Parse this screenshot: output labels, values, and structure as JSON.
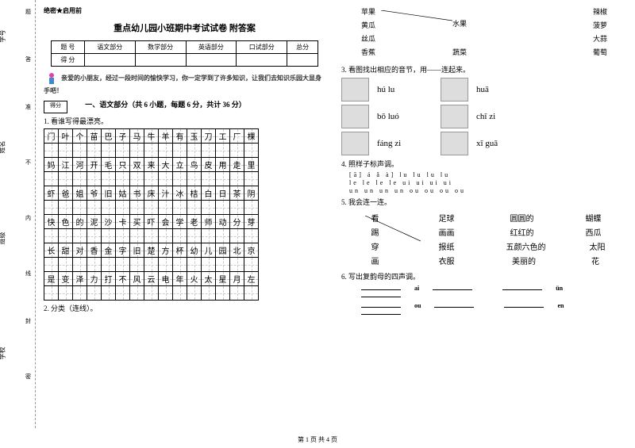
{
  "binding": {
    "labels": [
      "学号",
      "姓名",
      "班级",
      "学校"
    ],
    "marks": [
      "题",
      "答",
      "准",
      "不",
      "内",
      "线",
      "封",
      "密"
    ]
  },
  "header_tag": "绝密★启用前",
  "title": "重点幼儿园小班期中考试试卷 附答案",
  "score_table": {
    "headers": [
      "题 号",
      "语文部分",
      "数学部分",
      "英语部分",
      "口试部分",
      "总分"
    ],
    "row_label": "得 分"
  },
  "intro": "亲爱的小朋友，经过一段时间的愉快学习，你一定学到了许多知识，让我们去知识乐园大显身手吧！",
  "score_box_label": "得分",
  "section1_title": "一、语文部分（共 6 小题，每题 6 分，共计 36 分）",
  "q1": "1. 看谁写得最漂亮。",
  "char_grid": [
    [
      "门",
      "叶",
      "个",
      "苗",
      "巴",
      "子",
      "马",
      "牛",
      "羊",
      "有",
      "玉",
      "刀",
      "工",
      "厂",
      "棵"
    ],
    [
      "",
      "",
      "",
      "",
      "",
      "",
      "",
      "",
      "",
      "",
      "",
      "",
      "",
      "",
      ""
    ],
    [
      "妈",
      "江",
      "河",
      "开",
      "毛",
      "只",
      "双",
      "来",
      "大",
      "立",
      "鸟",
      "皮",
      "用",
      "走",
      "里"
    ],
    [
      "",
      "",
      "",
      "",
      "",
      "",
      "",
      "",
      "",
      "",
      "",
      "",
      "",
      "",
      ""
    ],
    [
      "虾",
      "爸",
      "姐",
      "爷",
      "旧",
      "姑",
      "书",
      "床",
      "汁",
      "冰",
      "桔",
      "白",
      "日",
      "茶",
      "阴"
    ],
    [
      "",
      "",
      "",
      "",
      "",
      "",
      "",
      "",
      "",
      "",
      "",
      "",
      "",
      "",
      ""
    ],
    [
      "快",
      "色",
      "的",
      "泥",
      "沙",
      "卡",
      "买",
      "吓",
      "会",
      "学",
      "老",
      "师",
      "动",
      "分",
      "芽"
    ],
    [
      "",
      "",
      "",
      "",
      "",
      "",
      "",
      "",
      "",
      "",
      "",
      "",
      "",
      "",
      ""
    ],
    [
      "长",
      "甜",
      "对",
      "香",
      "金",
      "字",
      "旧",
      "楚",
      "方",
      "杯",
      "幼",
      "儿",
      "园",
      "北",
      "京"
    ],
    [
      "",
      "",
      "",
      "",
      "",
      "",
      "",
      "",
      "",
      "",
      "",
      "",
      "",
      "",
      ""
    ],
    [
      "是",
      "变",
      "泽",
      "力",
      "打",
      "不",
      "风",
      "云",
      "电",
      "年",
      "火",
      "太",
      "星",
      "月",
      "左"
    ],
    [
      "",
      "",
      "",
      "",
      "",
      "",
      "",
      "",
      "",
      "",
      "",
      "",
      "",
      "",
      ""
    ]
  ],
  "q2": "2. 分类（连线）。",
  "match1": {
    "left": [
      "苹果",
      "黄瓜",
      "丝瓜",
      "香蕉"
    ],
    "mid": [
      "水果",
      "蔬菜"
    ],
    "right": [
      "辣椒",
      "菠萝",
      "大蒜",
      "葡萄"
    ]
  },
  "q3": "3. 看图找出相应的音节，用——连起来。",
  "pinyin_items": [
    {
      "p1": "hú lu",
      "p2": "huā"
    },
    {
      "p1": "bō luó",
      "p2": "chǐ zi"
    },
    {
      "p1": "fáng zi",
      "p2": "xī guā"
    }
  ],
  "q4": "4. 照样子标声调。",
  "tones": [
    "[ā]  á  ǎ  à]      lu  lu  lu  lu",
    "le  le  le  le     ui  ui  ui  ui",
    "un  un  un  un     ou  ou  ou  ou"
  ],
  "q5": "5. 我会连一连。",
  "match2": {
    "c1": [
      "看",
      "踢",
      "穿",
      "画"
    ],
    "c2": [
      "足球",
      "画画",
      "报纸",
      "衣服"
    ],
    "c3": [
      "圆圆的",
      "红红的",
      "五颜六色的",
      "美丽的"
    ],
    "c4": [
      "蝴蝶",
      "西瓜",
      "太阳",
      "花"
    ]
  },
  "q6": "6. 写出复韵母的四声调。",
  "blanks": [
    {
      "l": "ai",
      "r": "ün"
    },
    {
      "l": "ou",
      "r": "en"
    }
  ],
  "footer": "第 1 页 共 4 页"
}
